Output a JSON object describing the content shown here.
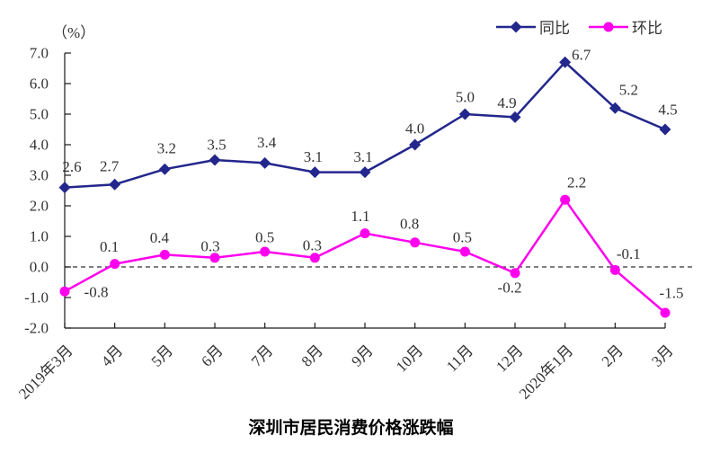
{
  "chart_data": {
    "type": "line",
    "title": "深圳市居民消费价格涨跌幅",
    "unit_label": "（%）",
    "categories": [
      "2019年3月",
      "4月",
      "5月",
      "6月",
      "7月",
      "8月",
      "9月",
      "10月",
      "11月",
      "12月",
      "2020年1月",
      "2月",
      "3月"
    ],
    "series": [
      {
        "name": "同比",
        "color": "#23278C",
        "marker": "diamond",
        "values": [
          2.6,
          2.7,
          3.2,
          3.5,
          3.4,
          3.1,
          3.1,
          4.0,
          5.0,
          4.9,
          6.7,
          5.2,
          4.5
        ],
        "label_offsets": [
          [
            8,
            -23
          ],
          [
            -6,
            -20
          ],
          [
            2,
            -23
          ],
          [
            2,
            -17
          ],
          [
            2,
            -23
          ],
          [
            -2,
            -17
          ],
          [
            -2,
            -17
          ],
          [
            0,
            -18
          ],
          [
            0,
            -19
          ],
          [
            -9,
            -16
          ],
          [
            18,
            -8
          ],
          [
            15,
            -20
          ],
          [
            3,
            -22
          ]
        ]
      },
      {
        "name": "环比",
        "color": "#FF00EE",
        "marker": "circle",
        "values": [
          -0.8,
          0.1,
          0.4,
          0.3,
          0.5,
          0.3,
          1.1,
          0.8,
          0.5,
          -0.2,
          2.2,
          -0.1,
          -1.5
        ],
        "label_offsets": [
          [
            35,
            1
          ],
          [
            -6,
            -19
          ],
          [
            -6,
            -19
          ],
          [
            -5,
            -13
          ],
          [
            0,
            -16
          ],
          [
            -3,
            -14
          ],
          [
            -5,
            -19
          ],
          [
            -6,
            -21
          ],
          [
            -3,
            -16
          ],
          [
            -6,
            16
          ],
          [
            13,
            -19
          ],
          [
            15,
            -18
          ],
          [
            7,
            -22
          ]
        ]
      }
    ],
    "y_axis": {
      "min": -2.0,
      "max": 7.0,
      "step": 1.0,
      "tick_labels": [
        "7.0",
        "6.0",
        "5.0",
        "4.0",
        "3.0",
        "2.0",
        "1.0",
        "0.0",
        "-1.0",
        "-2.0"
      ]
    },
    "zero_line": "dashed",
    "grid": "off",
    "legend_position": "top-right",
    "axis_color": "#1a1a1a",
    "label_color": "#333333"
  }
}
